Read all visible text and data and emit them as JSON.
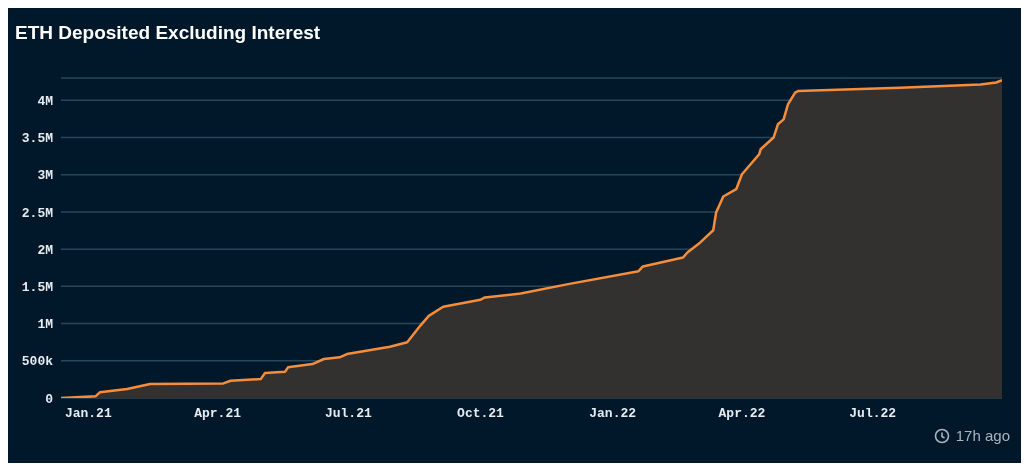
{
  "chart_data": {
    "type": "area",
    "title": "ETH Deposited Excluding Interest",
    "annotations": [
      "17h ago"
    ],
    "x": [
      "2020-12-13",
      "2021-01-06",
      "2021-01-09",
      "2021-01-28",
      "2021-02-13",
      "2021-04-05",
      "2021-04-10",
      "2021-05-01",
      "2021-05-04",
      "2021-05-18",
      "2021-05-20",
      "2021-06-06",
      "2021-06-14",
      "2021-06-25",
      "2021-06-30",
      "2021-07-30",
      "2021-08-11",
      "2021-08-20",
      "2021-08-26",
      "2021-09-05",
      "2021-10-01",
      "2021-10-04",
      "2021-10-29",
      "2021-12-01",
      "2022-01-19",
      "2022-01-22",
      "2022-02-19",
      "2022-02-22",
      "2022-03-03",
      "2022-03-12",
      "2022-03-14",
      "2022-03-19",
      "2022-03-28",
      "2022-04-01",
      "2022-04-13",
      "2022-04-14",
      "2022-04-23",
      "2022-04-26",
      "2022-04-30",
      "2022-05-03",
      "2022-05-08",
      "2022-05-10",
      "2022-07-20",
      "2022-09-14",
      "2022-09-25",
      "2022-09-29"
    ],
    "series": [
      {
        "color": "#f68d3b",
        "values": [
          0,
          22000,
          76000,
          120000,
          188000,
          196000,
          232000,
          254000,
          336000,
          354000,
          412000,
          456000,
          524000,
          546000,
          590000,
          688000,
          748000,
          970000,
          1104000,
          1226000,
          1320000,
          1352000,
          1404000,
          1530000,
          1704000,
          1768000,
          1888000,
          1956000,
          2090000,
          2254000,
          2492000,
          2708000,
          2806000,
          3006000,
          3276000,
          3342000,
          3500000,
          3678000,
          3744000,
          3946000,
          4104000,
          4124000,
          4170000,
          4214000,
          4240000,
          4270000
        ]
      }
    ],
    "xlim": [
      "2020-12-13",
      "2022-09-29"
    ],
    "xticks": [
      {
        "value": "2021-01-01",
        "label": "Jan.21"
      },
      {
        "value": "2021-04-01",
        "label": "Apr.21"
      },
      {
        "value": "2021-07-01",
        "label": "Jul.21"
      },
      {
        "value": "2021-10-01",
        "label": "Oct.21"
      },
      {
        "value": "2022-01-01",
        "label": "Jan.22"
      },
      {
        "value": "2022-04-01",
        "label": "Apr.22"
      },
      {
        "value": "2022-07-01",
        "label": "Jul.22"
      }
    ],
    "ylim": [
      0,
      4300000
    ],
    "yticks": [
      0,
      {
        "value": 500000,
        "label": "500k"
      },
      {
        "value": 1000000,
        "label": "1M"
      },
      {
        "value": 1500000,
        "label": "1.5M"
      },
      {
        "value": 2000000,
        "label": "2M"
      },
      {
        "value": 2500000,
        "label": "2.5M"
      },
      {
        "value": 3000000,
        "label": "3M"
      },
      {
        "value": 3500000,
        "label": "3.5M"
      },
      {
        "value": 4000000,
        "label": "4M"
      }
    ],
    "grid": "y",
    "legend": false
  }
}
